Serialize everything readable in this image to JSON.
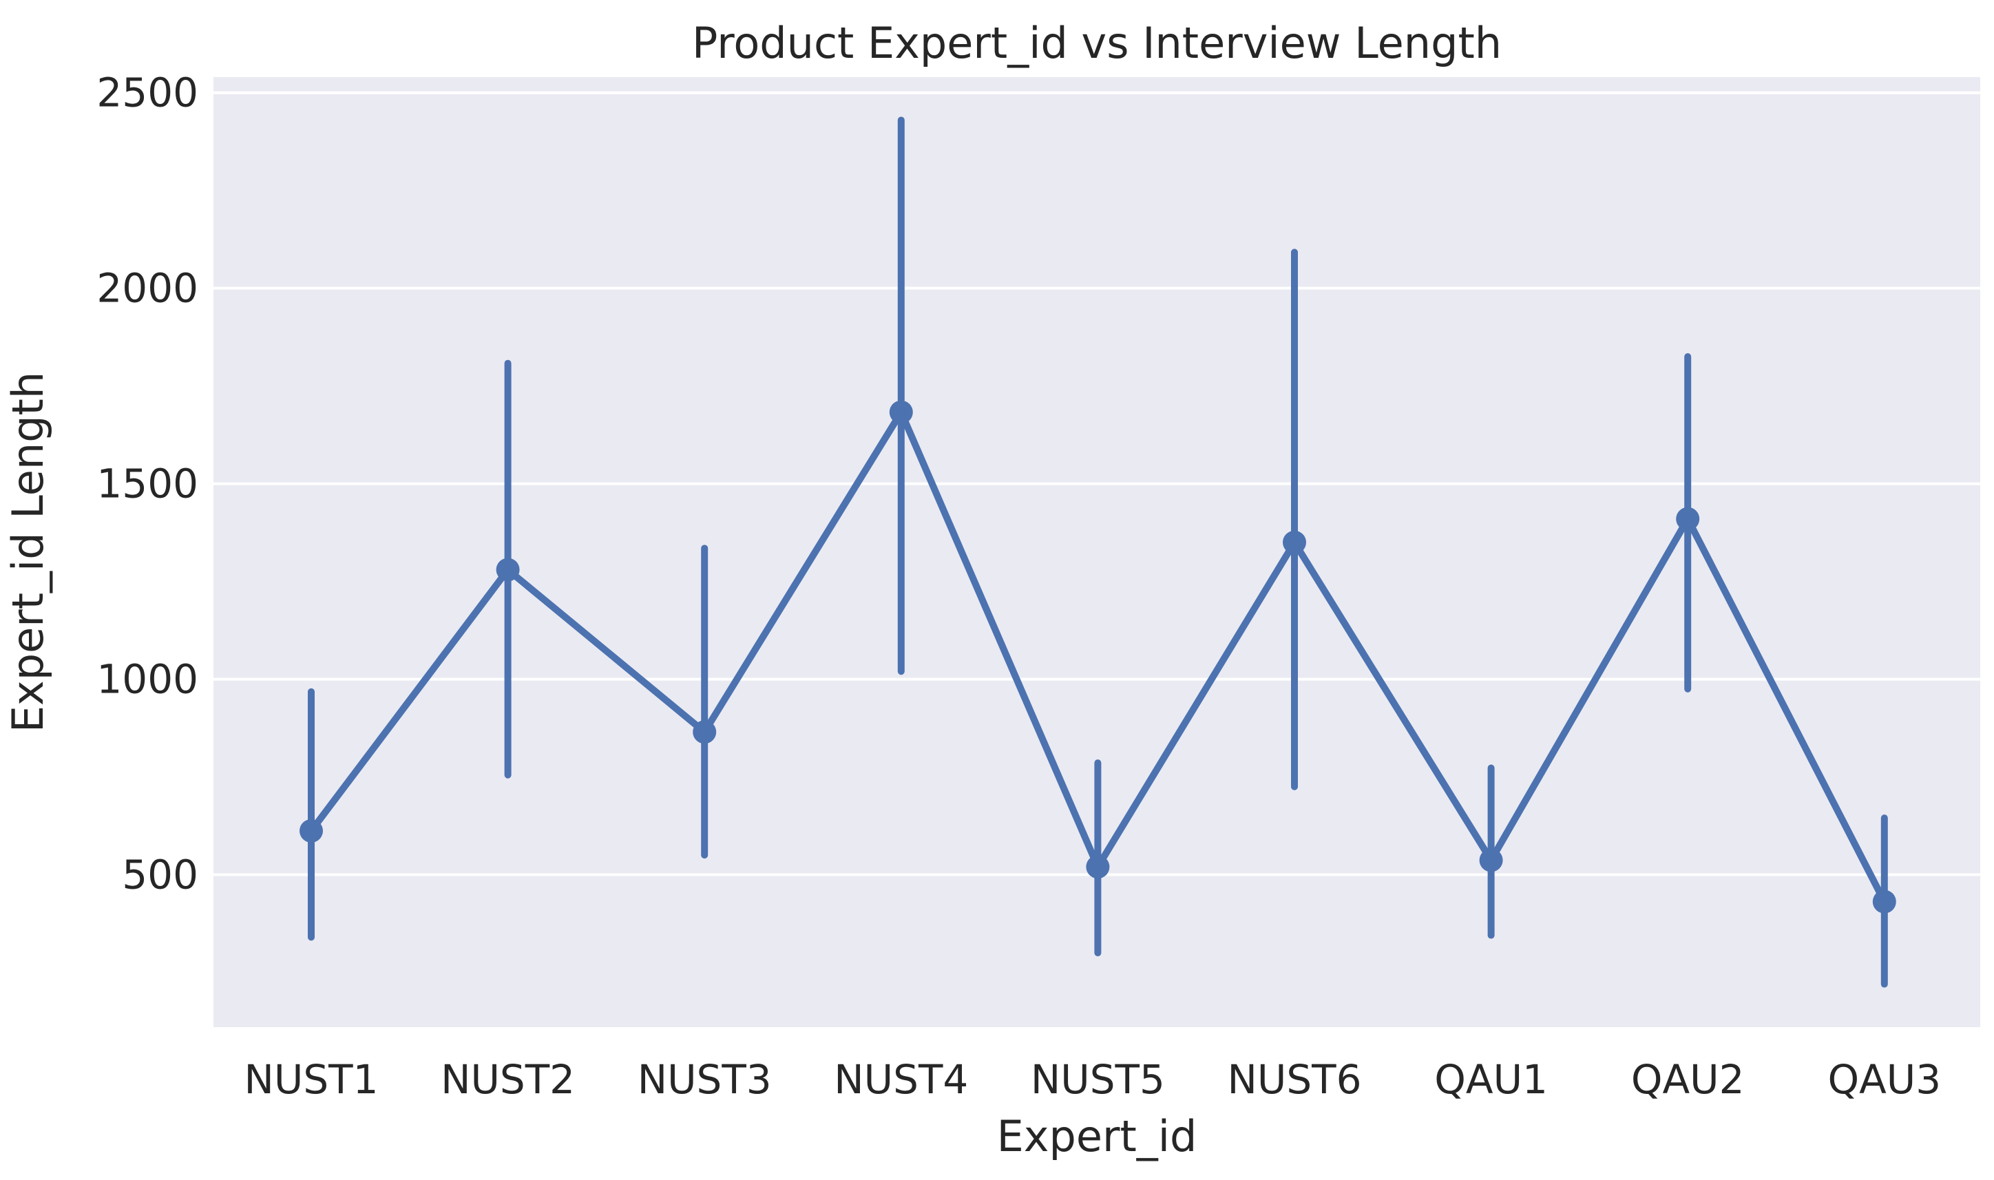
{
  "chart_data": {
    "type": "line",
    "title": "Product Expert_id vs Interview Length",
    "xlabel": "Expert_id",
    "ylabel": "Expert_id Length",
    "categories": [
      "NUST1",
      "NUST2",
      "NUST3",
      "NUST4",
      "NUST5",
      "NUST6",
      "QAU1",
      "QAU2",
      "QAU3"
    ],
    "series": [
      {
        "values": [
          612,
          1280,
          865,
          1683,
          520,
          1350,
          537,
          1410,
          431
        ],
        "ci_low": [
          340,
          755,
          550,
          1020,
          300,
          725,
          345,
          975,
          220
        ],
        "ci_high": [
          968,
          1808,
          1335,
          2430,
          786,
          2092,
          773,
          1825,
          645
        ],
        "color": "#4c72b0"
      }
    ],
    "yticks": [
      500,
      1000,
      1500,
      2000,
      2500
    ],
    "ylim": [
      110,
      2540
    ],
    "grid": true,
    "background": "#eaeaf2"
  }
}
